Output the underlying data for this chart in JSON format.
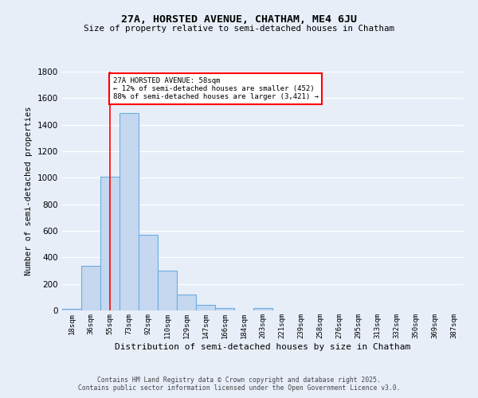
{
  "title1": "27A, HORSTED AVENUE, CHATHAM, ME4 6JU",
  "title2": "Size of property relative to semi-detached houses in Chatham",
  "xlabel": "Distribution of semi-detached houses by size in Chatham",
  "ylabel": "Number of semi-detached properties",
  "categories": [
    "18sqm",
    "36sqm",
    "55sqm",
    "73sqm",
    "92sqm",
    "110sqm",
    "129sqm",
    "147sqm",
    "166sqm",
    "184sqm",
    "203sqm",
    "221sqm",
    "239sqm",
    "258sqm",
    "276sqm",
    "295sqm",
    "313sqm",
    "332sqm",
    "350sqm",
    "369sqm",
    "387sqm"
  ],
  "values": [
    15,
    335,
    1010,
    1490,
    570,
    300,
    120,
    45,
    20,
    0,
    20,
    0,
    0,
    0,
    0,
    0,
    0,
    0,
    0,
    0,
    0
  ],
  "bar_color": "#c5d8f0",
  "bar_edge_color": "#6aaee0",
  "vline_x": 2,
  "vline_color": "red",
  "annotation_text": "27A HORSTED AVENUE: 58sqm\n← 12% of semi-detached houses are smaller (452)\n88% of semi-detached houses are larger (3,421) →",
  "annotation_box_color": "white",
  "annotation_box_edge_color": "red",
  "ylim": [
    0,
    1800
  ],
  "yticks": [
    0,
    200,
    400,
    600,
    800,
    1000,
    1200,
    1400,
    1600,
    1800
  ],
  "footer": "Contains HM Land Registry data © Crown copyright and database right 2025.\nContains public sector information licensed under the Open Government Licence v3.0.",
  "bg_color": "#e8eef8",
  "grid_color": "white"
}
